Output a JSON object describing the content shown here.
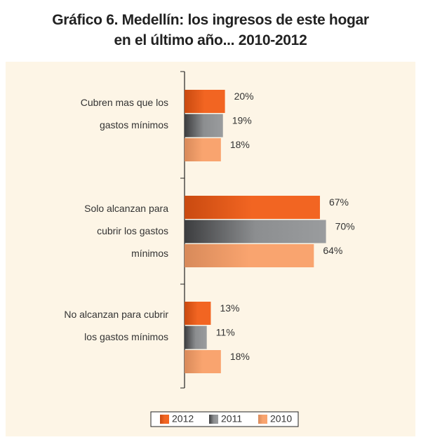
{
  "chart_data": {
    "type": "hbar",
    "title": [
      "Gráfico 6. Medellín: los ingresos de este hogar",
      "en el último año... 2010-2012"
    ],
    "categories": [
      "Cubren mas que los gastos mínimos",
      "Solo alcanzan para cubrir los gastos mínimos",
      "No alcanzan para cubrir los gastos mínimos"
    ],
    "series": [
      {
        "name": "2012",
        "color": "#f26522",
        "values": [
          20,
          67,
          13
        ],
        "value_labels": [
          "20%",
          "67%",
          "13%"
        ]
      },
      {
        "name": "2011",
        "color": "#8c8e90",
        "values": [
          19,
          70,
          11
        ],
        "value_labels": [
          "19%",
          "70%",
          "11%"
        ]
      },
      {
        "name": "2010",
        "color": "#f9a46f",
        "values": [
          18,
          64,
          18
        ],
        "value_labels": [
          "18%",
          "64%",
          "18%"
        ]
      }
    ]
  }
}
